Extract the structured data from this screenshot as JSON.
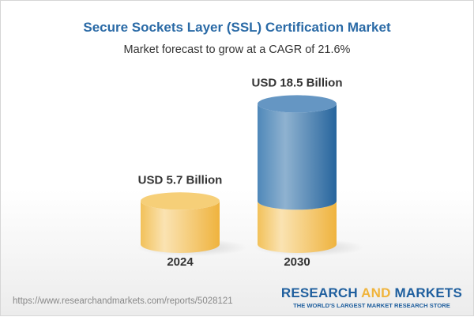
{
  "title": "Secure Sockets Layer (SSL) Certification Market",
  "subtitle": "Market forecast to grow at a CAGR of 21.6%",
  "chart_data": {
    "type": "bar",
    "style": "3d-cylinder",
    "categories": [
      "2024",
      "2030"
    ],
    "values": [
      5.7,
      18.5
    ],
    "data_labels": [
      "USD 5.7 Billion",
      "USD 18.5 Billion"
    ],
    "unit": "USD Billion",
    "grid": false,
    "colors": {
      "base": "#f3c35c",
      "growth": "#3f7fb5"
    }
  },
  "footer": {
    "url": "https://www.researchandmarkets.com/reports/5028121",
    "logo_part1": "RESEARCH ",
    "logo_part2": "AND",
    "logo_part3": " MARKETS",
    "tagline": "THE WORLD'S LARGEST MARKET RESEARCH STORE"
  }
}
